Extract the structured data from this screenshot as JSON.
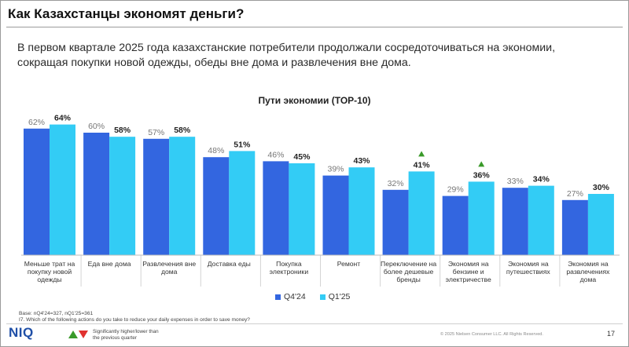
{
  "slide": {
    "title": "Как Казахстанцы экономят деньги?",
    "subtitle": "В первом квартале 2025 года казахстанские потребители продолжали сосредоточиваться на экономии, сокращая покупки новой одежды, обеды вне дома и развлечения вне дома.",
    "base_note": "Base: nQ4'24=327, nQ1'25=361",
    "question_note": "I7.  Which of the following actions do you take to reduce your daily expenses in order to save money?",
    "logo": "NIQ",
    "significance_note_line1": "Significantly higher/lower than",
    "significance_note_line2": "the previous quarter",
    "copyright": "© 2025 Nielsen Consumer LLC. All Rights Reserved.",
    "page_number": "17"
  },
  "colors": {
    "q4_24": "#3366e0",
    "q1_25": "#33ccf5",
    "sig_up": "#3a9a2a",
    "sig_down": "#e0312f"
  },
  "chart_data": {
    "type": "bar",
    "title": "Пути экономии (TOP-10)",
    "categories": [
      "Меньше трат на покупку новой одежды",
      "Еда вне дома",
      "Развлечения вне дома",
      "Доставка еды",
      "Покупка электроники",
      "Ремонт",
      "Переключение на более дешевые бренды",
      "Экономия на бензине и электричестве",
      "Экономия на путешествиях",
      "Экономия на развлечениях дома"
    ],
    "category_lines": [
      [
        "Меньше трат на",
        "покупку новой",
        "одежды"
      ],
      [
        "Еда вне дома"
      ],
      [
        "Развлечения вне",
        "дома"
      ],
      [
        "Доставка еды"
      ],
      [
        "Покупка",
        "электроники"
      ],
      [
        "Ремонт"
      ],
      [
        "Переключение на",
        "более дешевые",
        "бренды"
      ],
      [
        "Экономия на",
        "бензине и",
        "электричестве"
      ],
      [
        "Экономия на",
        "путешествиях"
      ],
      [
        "Экономия на",
        "развлечениях",
        "дома"
      ]
    ],
    "series": [
      {
        "name": "Q4'24",
        "values": [
          62,
          60,
          57,
          48,
          46,
          39,
          32,
          29,
          33,
          27
        ],
        "labels": [
          "62%",
          "60%",
          "57%",
          "48%",
          "46%",
          "39%",
          "32%",
          "29%",
          "33%",
          "27%"
        ]
      },
      {
        "name": "Q1'25",
        "values": [
          64,
          58,
          58,
          51,
          45,
          43,
          41,
          36,
          34,
          30
        ],
        "labels": [
          "64%",
          "58%",
          "58%",
          "51%",
          "45%",
          "43%",
          "41%",
          "36%",
          "34%",
          "30%"
        ]
      }
    ],
    "significant_up": [
      6,
      7
    ],
    "ylim": [
      0,
      70
    ],
    "grid": false,
    "legend": "bottom-center"
  }
}
